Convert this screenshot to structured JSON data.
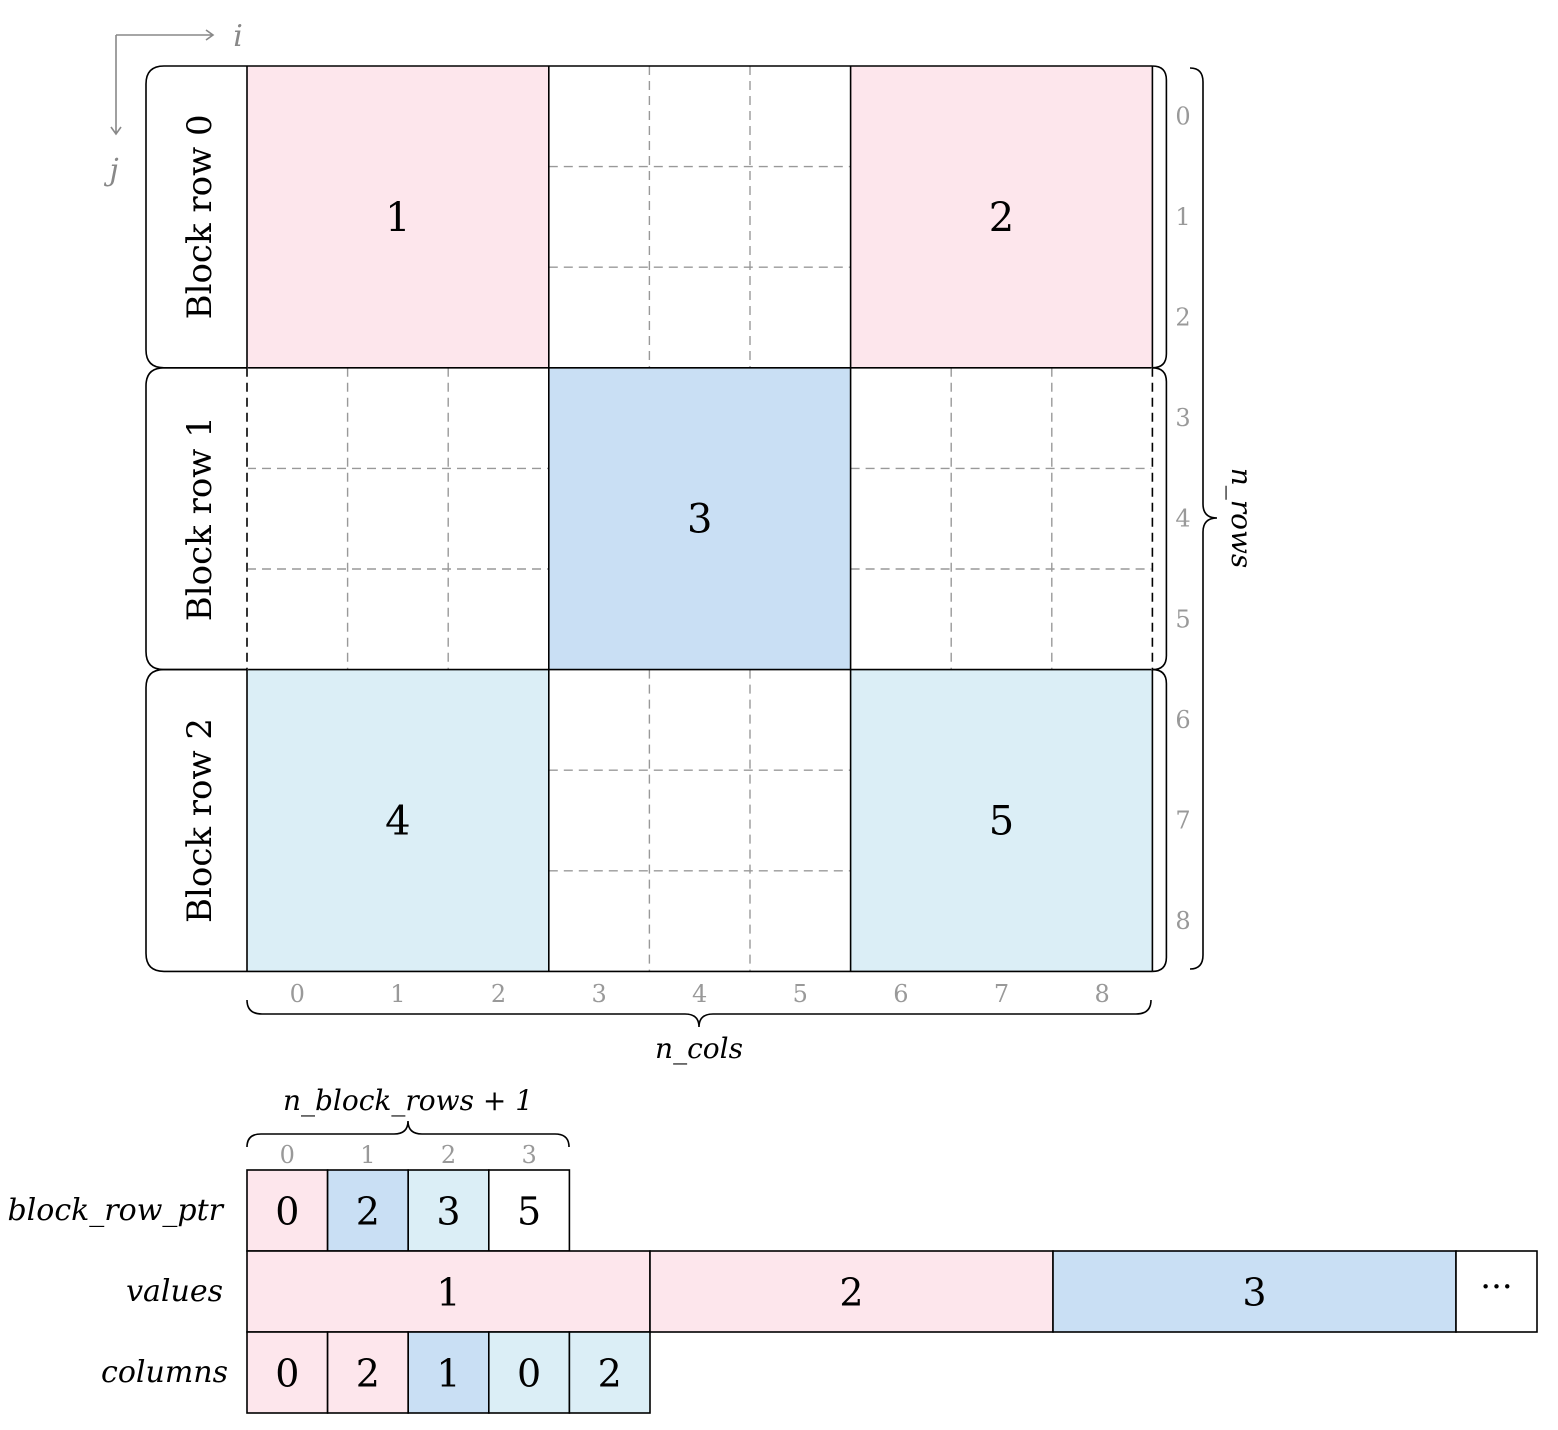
{
  "axes": {
    "i_label": "i",
    "j_label": "j"
  },
  "matrix": {
    "row_labels": [
      "Block row 0",
      "Block row 1",
      "Block row 2"
    ],
    "blocks": [
      {
        "row": 0,
        "col": 0,
        "label": "1",
        "color": "#fde6ec"
      },
      {
        "row": 0,
        "col": 2,
        "label": "2",
        "color": "#fde6ec"
      },
      {
        "row": 1,
        "col": 1,
        "label": "3",
        "color": "#c9dff4"
      },
      {
        "row": 2,
        "col": 0,
        "label": "4",
        "color": "#dbeef6"
      },
      {
        "row": 2,
        "col": 2,
        "label": "5",
        "color": "#dbeef6"
      }
    ],
    "col_indices": [
      "0",
      "1",
      "2",
      "3",
      "4",
      "5",
      "6",
      "7",
      "8"
    ],
    "row_indices": [
      "0",
      "1",
      "2",
      "3",
      "4",
      "5",
      "6",
      "7",
      "8"
    ],
    "n_cols_label": "n_cols",
    "n_rows_label": "n_rows"
  },
  "arrays": {
    "n_block_rows_label": "n_block_rows + 1",
    "ptr_indices": [
      "0",
      "1",
      "2",
      "3"
    ],
    "block_row_ptr": {
      "label": "block_row_ptr",
      "cells": [
        {
          "value": "0",
          "color": "#fde6ec"
        },
        {
          "value": "2",
          "color": "#c9dff4"
        },
        {
          "value": "3",
          "color": "#dbeef6"
        },
        {
          "value": "5",
          "color": "#ffffff"
        }
      ]
    },
    "values": {
      "label": "values",
      "cells": [
        {
          "value": "1",
          "color": "#fde6ec"
        },
        {
          "value": "2",
          "color": "#fde6ec"
        },
        {
          "value": "3",
          "color": "#c9dff4"
        }
      ],
      "ellipsis": "···"
    },
    "columns": {
      "label": "columns",
      "cells": [
        {
          "value": "0",
          "color": "#fde6ec"
        },
        {
          "value": "2",
          "color": "#fde6ec"
        },
        {
          "value": "1",
          "color": "#c9dff4"
        },
        {
          "value": "0",
          "color": "#dbeef6"
        },
        {
          "value": "2",
          "color": "#dbeef6"
        }
      ]
    }
  }
}
